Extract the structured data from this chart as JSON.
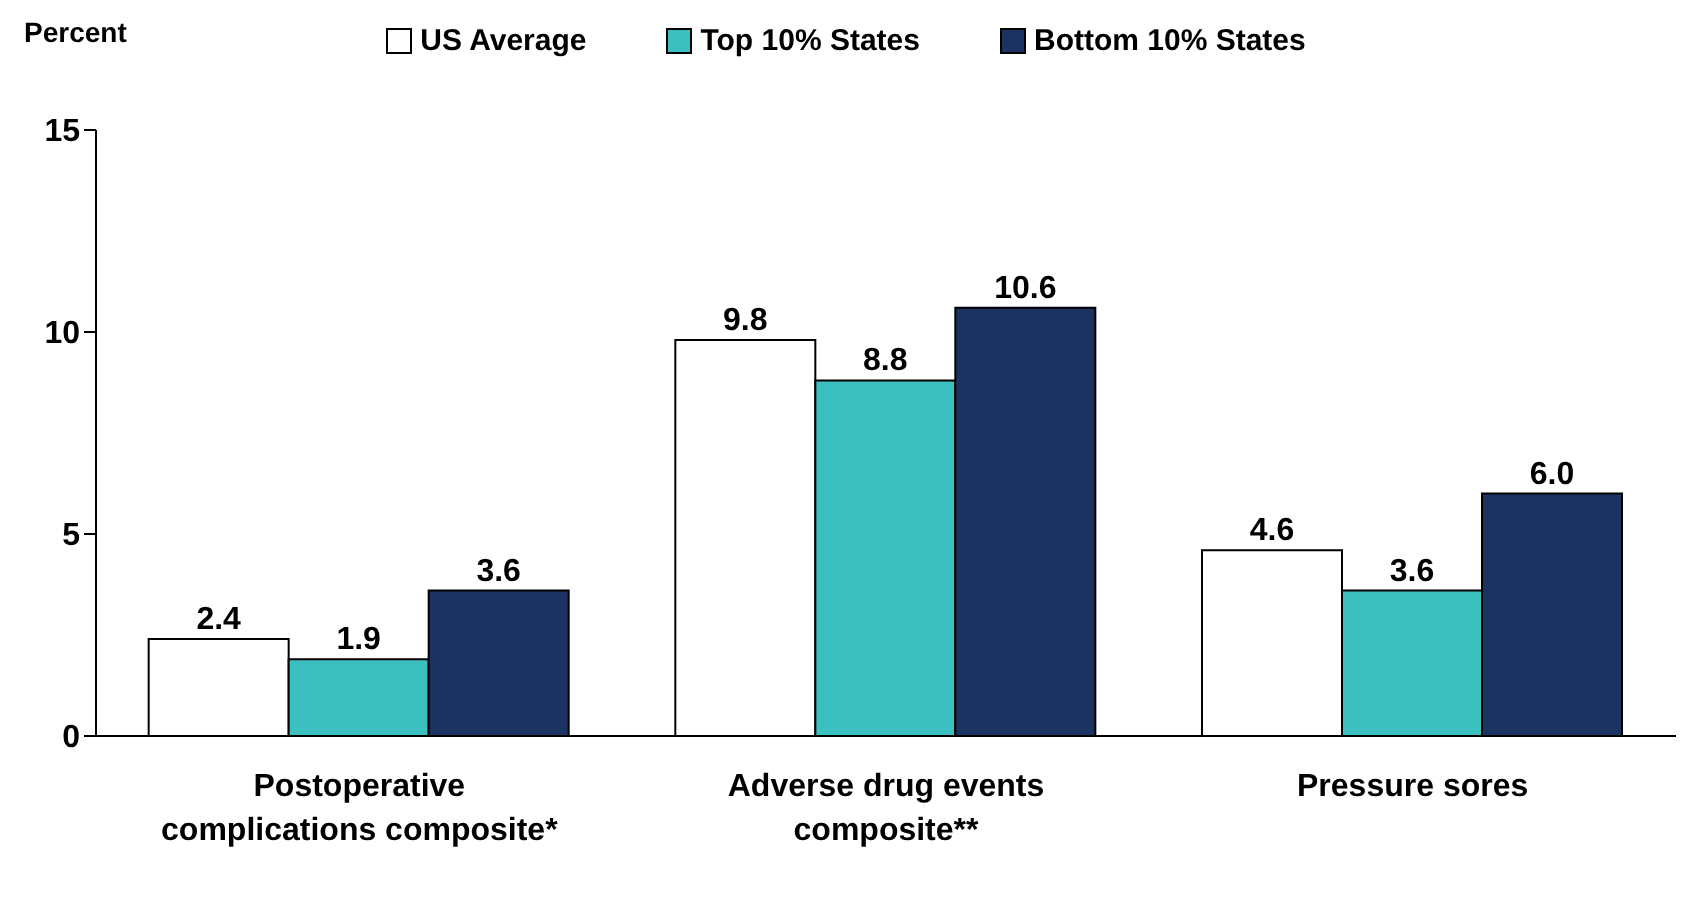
{
  "chart_data": {
    "type": "bar",
    "ylabel": "Percent",
    "categories": [
      "Postoperative complications composite*",
      "Adverse drug events composite**",
      "Pressure sores"
    ],
    "series": [
      {
        "name": "US Average",
        "color": "#ffffff",
        "values": [
          2.4,
          9.8,
          4.6
        ],
        "value_labels": [
          "2.4",
          "9.8",
          "4.6"
        ]
      },
      {
        "name": "Top 10% States",
        "color": "#3cbfbf",
        "values": [
          1.9,
          8.8,
          3.6
        ],
        "value_labels": [
          "1.9",
          "8.8",
          "3.6"
        ]
      },
      {
        "name": "Bottom 10% States",
        "color": "#1b3360",
        "values": [
          3.6,
          10.6,
          6.0
        ],
        "value_labels": [
          "3.6",
          "10.6",
          "6.0"
        ]
      }
    ],
    "ylim": [
      0,
      15
    ],
    "yticks": [
      0,
      5,
      10,
      15
    ],
    "legend": "top",
    "grid": false
  }
}
